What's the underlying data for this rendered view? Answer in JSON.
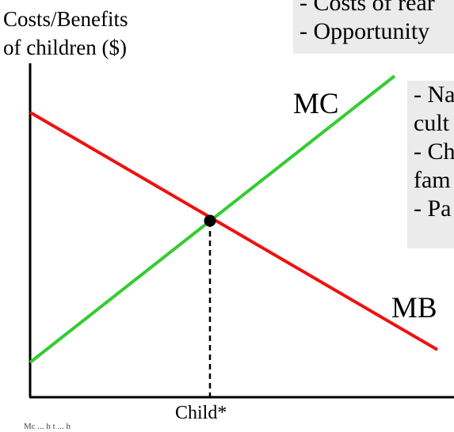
{
  "axes": {
    "y_label_line1": "Costs/Benefits",
    "y_label_line2": "of children ($)",
    "x_tick_label": "Child*"
  },
  "boxes": {
    "top": [
      "- Costs of rear",
      "- Opportunity"
    ],
    "right": [
      "- Na",
      "cult",
      "- Ch",
      "fam",
      "- Pa"
    ]
  },
  "curves": {
    "mc": {
      "label": "MC",
      "color": "#33cc33"
    },
    "mb": {
      "label": "MB",
      "color": "#ee1111"
    }
  },
  "equilibrium": {
    "color": "#000000"
  },
  "footer": {
    "source_text": "Mc  ... h t   ...   h   "
  }
}
